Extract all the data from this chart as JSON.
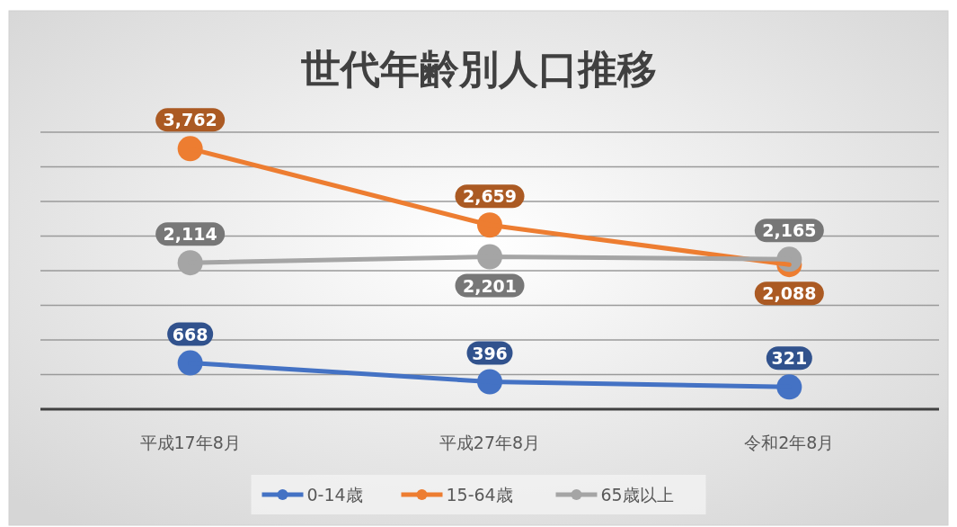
{
  "chart_data": {
    "type": "line",
    "title": "世代年齢別人口推移",
    "categories": [
      "平成17年8月",
      "平成27年8月",
      "令和2年8月"
    ],
    "series": [
      {
        "name": "0-14歳",
        "color": "#4472c4",
        "values": [
          668,
          396,
          321
        ],
        "value_labels": [
          "668",
          "396",
          "321"
        ]
      },
      {
        "name": "15-64歳",
        "color": "#ed7d31",
        "values": [
          3762,
          2659,
          2088
        ],
        "value_labels": [
          "3,762",
          "2,659",
          "2,088"
        ]
      },
      {
        "name": "65歳以上",
        "color": "#a5a5a5",
        "values": [
          2114,
          2201,
          2165
        ],
        "value_labels": [
          "2,114",
          "2,201",
          "2,165"
        ]
      }
    ],
    "ylim": [
      0,
      4000
    ],
    "yticks": [
      {
        "value": 0,
        "label": null
      },
      {
        "value": 500,
        "label": null
      },
      {
        "value": 1000,
        "label": null
      },
      {
        "value": 1500,
        "label": null
      },
      {
        "value": 2000,
        "label": null
      },
      {
        "value": 2500,
        "label": null
      },
      {
        "value": 3000,
        "label": null
      },
      {
        "value": 3500,
        "label": null
      },
      {
        "value": 4000,
        "label": null
      }
    ],
    "grid": "y",
    "tick_labels": "x",
    "marker": "circle",
    "line_style": "solid",
    "legend": "bottom"
  }
}
